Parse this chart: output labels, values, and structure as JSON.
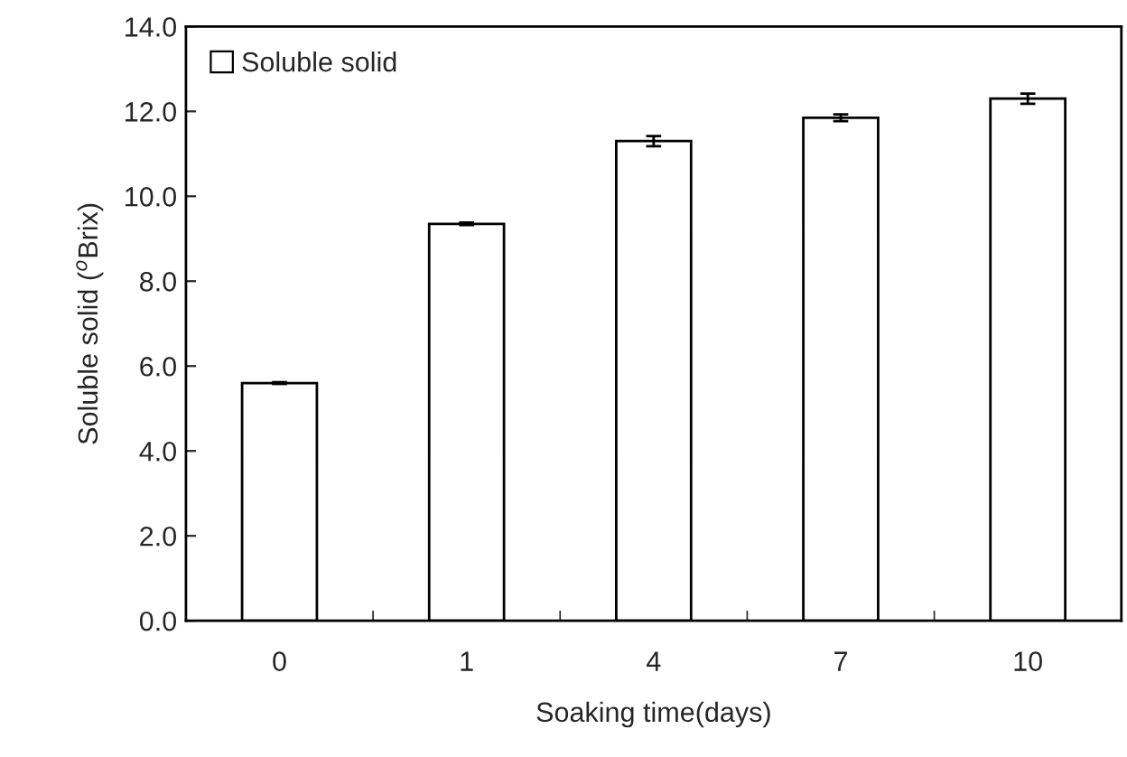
{
  "chart_data": {
    "type": "bar",
    "xlabel": "Soaking time(days)",
    "ylabel": "Soluble solid ($^{o}$Brix)",
    "categories": [
      "0",
      "1",
      "4",
      "7",
      "10"
    ],
    "series": [
      {
        "name": "Soluble solid",
        "color": "#ffffff",
        "values": [
          5.6,
          9.35,
          11.3,
          11.85,
          12.3
        ],
        "errors": [
          0.02,
          0.03,
          0.12,
          0.08,
          0.12
        ]
      }
    ],
    "ylim": [
      0,
      14
    ],
    "yticks": [
      {
        "value": 0,
        "label": "0.0"
      },
      {
        "value": 2,
        "label": "2.0"
      },
      {
        "value": 4,
        "label": "4.0"
      },
      {
        "value": 6,
        "label": "6.0"
      },
      {
        "value": 8,
        "label": "8.0"
      },
      {
        "value": 10,
        "label": "10.0"
      },
      {
        "value": 12,
        "label": "12.0"
      },
      {
        "value": 14,
        "label": "14.0"
      }
    ],
    "legend": "top left",
    "grid": false
  }
}
